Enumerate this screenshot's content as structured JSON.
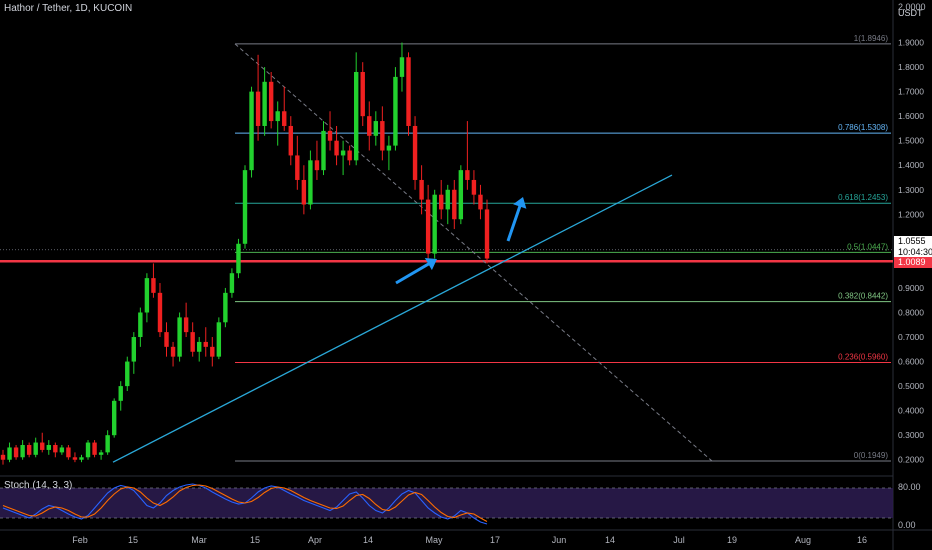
{
  "header": {
    "symbol_line": "Hathor / Tether, 1D, KUCOIN",
    "currency_top": "2.0000",
    "currency_unit": "USDT"
  },
  "stoch": {
    "label": "Stoch (14, 3, 3)",
    "upper": "80.00",
    "lower": "0.00"
  },
  "price_tags": {
    "last": "1.0555",
    "timer": "10:04:30",
    "line": "1.0089"
  },
  "chart_data": {
    "type": "candlestick",
    "x_ticks": [
      "Feb",
      "15",
      "Mar",
      "15",
      "Apr",
      "14",
      "May",
      "17",
      "Jun",
      "14",
      "Jul",
      "19",
      "Aug",
      "16"
    ],
    "y_ticks": [
      "1.9000",
      "1.8000",
      "1.7000",
      "1.6000",
      "1.5000",
      "1.4000",
      "1.3000",
      "1.2000",
      "1.1000",
      "1.0000",
      "0.9000",
      "0.8000",
      "0.7000",
      "0.6000",
      "0.5000",
      "0.4000",
      "0.3000",
      "0.2000"
    ],
    "ylim": [
      0.15,
      2.0
    ],
    "fib_levels": [
      {
        "label": "1(1.8946)",
        "value": 1.8946,
        "color": "#787b86"
      },
      {
        "label": "0.786(1.5308)",
        "value": 1.5308,
        "color": "#64b5f6"
      },
      {
        "label": "0.618(1.2453)",
        "value": 1.2453,
        "color": "#26a69a"
      },
      {
        "label": "0.5(1.0447)",
        "value": 1.0447,
        "color": "#4caf50"
      },
      {
        "label": "0.382(0.8442)",
        "value": 0.8442,
        "color": "#81c784"
      },
      {
        "label": "0.236(0.5960)",
        "value": 0.596,
        "color": "#f23645"
      },
      {
        "label": "0(0.1949)",
        "value": 0.1949,
        "color": "#787b86"
      }
    ],
    "horizontal_line": {
      "value": 1.0089,
      "color": "#f23645"
    },
    "candles": [
      [
        0.22,
        0.24,
        0.18,
        0.2
      ],
      [
        0.2,
        0.27,
        0.19,
        0.25
      ],
      [
        0.25,
        0.26,
        0.2,
        0.21
      ],
      [
        0.21,
        0.28,
        0.2,
        0.26
      ],
      [
        0.26,
        0.27,
        0.21,
        0.22
      ],
      [
        0.22,
        0.29,
        0.21,
        0.27
      ],
      [
        0.27,
        0.31,
        0.23,
        0.24
      ],
      [
        0.24,
        0.28,
        0.22,
        0.26
      ],
      [
        0.26,
        0.27,
        0.21,
        0.23
      ],
      [
        0.23,
        0.26,
        0.22,
        0.25
      ],
      [
        0.25,
        0.26,
        0.2,
        0.21
      ],
      [
        0.21,
        0.23,
        0.19,
        0.2
      ],
      [
        0.2,
        0.22,
        0.19,
        0.21
      ],
      [
        0.21,
        0.28,
        0.2,
        0.27
      ],
      [
        0.27,
        0.28,
        0.21,
        0.22
      ],
      [
        0.22,
        0.24,
        0.2,
        0.23
      ],
      [
        0.23,
        0.32,
        0.22,
        0.3
      ],
      [
        0.3,
        0.45,
        0.29,
        0.44
      ],
      [
        0.44,
        0.52,
        0.4,
        0.5
      ],
      [
        0.5,
        0.62,
        0.48,
        0.6
      ],
      [
        0.6,
        0.72,
        0.55,
        0.7
      ],
      [
        0.7,
        0.82,
        0.66,
        0.8
      ],
      [
        0.8,
        0.96,
        0.76,
        0.94
      ],
      [
        0.94,
        1.0,
        0.86,
        0.88
      ],
      [
        0.88,
        0.92,
        0.7,
        0.72
      ],
      [
        0.72,
        0.76,
        0.62,
        0.66
      ],
      [
        0.66,
        0.68,
        0.58,
        0.62
      ],
      [
        0.62,
        0.8,
        0.6,
        0.78
      ],
      [
        0.78,
        0.84,
        0.7,
        0.72
      ],
      [
        0.72,
        0.76,
        0.62,
        0.64
      ],
      [
        0.64,
        0.7,
        0.6,
        0.68
      ],
      [
        0.68,
        0.74,
        0.62,
        0.66
      ],
      [
        0.66,
        0.7,
        0.58,
        0.62
      ],
      [
        0.62,
        0.78,
        0.61,
        0.76
      ],
      [
        0.76,
        0.9,
        0.74,
        0.88
      ],
      [
        0.88,
        0.98,
        0.86,
        0.96
      ],
      [
        0.96,
        1.1,
        0.94,
        1.08
      ],
      [
        1.08,
        1.4,
        1.06,
        1.38
      ],
      [
        1.38,
        1.72,
        1.35,
        1.7
      ],
      [
        1.7,
        1.85,
        1.5,
        1.56
      ],
      [
        1.56,
        1.8,
        1.52,
        1.74
      ],
      [
        1.74,
        1.78,
        1.55,
        1.58
      ],
      [
        1.58,
        1.66,
        1.48,
        1.62
      ],
      [
        1.62,
        1.72,
        1.54,
        1.56
      ],
      [
        1.56,
        1.6,
        1.4,
        1.44
      ],
      [
        1.44,
        1.52,
        1.3,
        1.34
      ],
      [
        1.34,
        1.4,
        1.2,
        1.24
      ],
      [
        1.24,
        1.46,
        1.22,
        1.42
      ],
      [
        1.42,
        1.5,
        1.34,
        1.38
      ],
      [
        1.38,
        1.58,
        1.36,
        1.54
      ],
      [
        1.54,
        1.62,
        1.46,
        1.5
      ],
      [
        1.5,
        1.56,
        1.4,
        1.44
      ],
      [
        1.44,
        1.5,
        1.36,
        1.46
      ],
      [
        1.46,
        1.48,
        1.4,
        1.42
      ],
      [
        1.42,
        1.86,
        1.4,
        1.78
      ],
      [
        1.78,
        1.82,
        1.56,
        1.6
      ],
      [
        1.6,
        1.66,
        1.46,
        1.52
      ],
      [
        1.52,
        1.62,
        1.48,
        1.58
      ],
      [
        1.58,
        1.64,
        1.42,
        1.46
      ],
      [
        1.46,
        1.52,
        1.38,
        1.48
      ],
      [
        1.48,
        1.8,
        1.46,
        1.76
      ],
      [
        1.76,
        1.9,
        1.7,
        1.84
      ],
      [
        1.84,
        1.86,
        1.52,
        1.56
      ],
      [
        1.56,
        1.6,
        1.3,
        1.34
      ],
      [
        1.34,
        1.4,
        1.2,
        1.26
      ],
      [
        1.26,
        1.32,
        1.0,
        1.04
      ],
      [
        1.04,
        1.3,
        1.02,
        1.28
      ],
      [
        1.28,
        1.34,
        1.18,
        1.22
      ],
      [
        1.22,
        1.32,
        1.16,
        1.3
      ],
      [
        1.3,
        1.34,
        1.14,
        1.18
      ],
      [
        1.18,
        1.4,
        1.16,
        1.38
      ],
      [
        1.38,
        1.58,
        1.3,
        1.34
      ],
      [
        1.34,
        1.38,
        1.24,
        1.28
      ],
      [
        1.28,
        1.32,
        1.18,
        1.22
      ],
      [
        1.22,
        1.26,
        1.0,
        1.02
      ]
    ],
    "stoch_k": [
      40,
      35,
      30,
      25,
      20,
      28,
      38,
      45,
      42,
      35,
      28,
      22,
      18,
      25,
      40,
      55,
      70,
      80,
      85,
      82,
      75,
      60,
      45,
      40,
      50,
      65,
      75,
      82,
      86,
      88,
      85,
      80,
      72,
      65,
      58,
      52,
      48,
      50,
      60,
      72,
      80,
      84,
      82,
      75,
      68,
      62,
      55,
      50,
      45,
      40,
      35,
      42,
      55,
      68,
      72,
      60,
      45,
      35,
      30,
      40,
      55,
      68,
      75,
      70,
      55,
      40,
      30,
      22,
      18,
      24,
      35,
      30,
      20,
      12,
      8
    ],
    "stoch_d": [
      45,
      40,
      35,
      30,
      25,
      24,
      30,
      38,
      42,
      40,
      35,
      28,
      22,
      22,
      28,
      40,
      55,
      68,
      78,
      82,
      80,
      72,
      60,
      50,
      45,
      52,
      62,
      74,
      81,
      85,
      86,
      84,
      79,
      72,
      65,
      58,
      52,
      50,
      53,
      61,
      71,
      79,
      82,
      80,
      75,
      68,
      61,
      55,
      50,
      45,
      40,
      39,
      44,
      55,
      65,
      67,
      59,
      47,
      37,
      35,
      42,
      54,
      66,
      71,
      67,
      55,
      42,
      31,
      23,
      21,
      26,
      30,
      28,
      20,
      13
    ]
  }
}
